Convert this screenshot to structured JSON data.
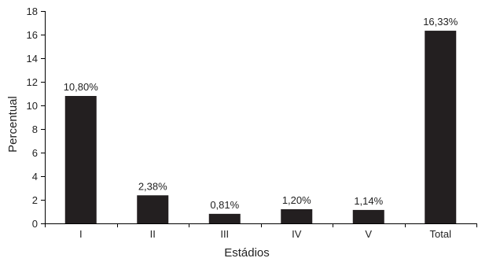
{
  "chart_data": {
    "type": "bar",
    "categories": [
      "I",
      "II",
      "III",
      "IV",
      "V",
      "Total"
    ],
    "values": [
      10.8,
      2.38,
      0.81,
      1.2,
      1.14,
      16.33
    ],
    "data_labels": [
      "10,80%",
      "2,38%",
      "0,81%",
      "1,20%",
      "1,14%",
      "16,33%"
    ],
    "xlabel": "Estádios",
    "ylabel": "Percentual",
    "ylim": [
      0,
      18
    ],
    "yticks": [
      0,
      2,
      4,
      6,
      8,
      10,
      12,
      14,
      16,
      18
    ],
    "grid": false,
    "bar_color": "#231f20"
  }
}
